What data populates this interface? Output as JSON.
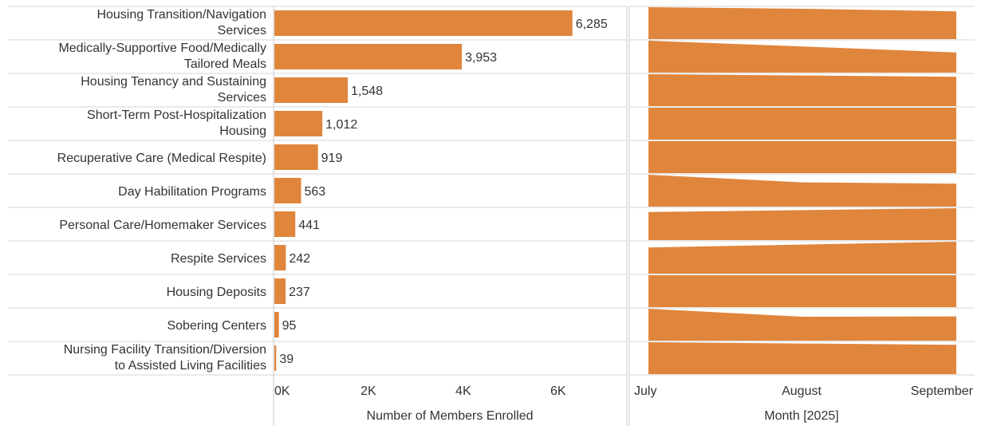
{
  "colors": {
    "bar": "#e0853c",
    "grid": "#d4d4d4",
    "axis": "#c8c8c8",
    "text": "#333333"
  },
  "chart_data": [
    {
      "type": "bar",
      "orientation": "horizontal",
      "categories": [
        [
          "Housing Transition/Navigation",
          "Services"
        ],
        [
          "Medically-Supportive Food/Medically",
          "Tailored Meals"
        ],
        [
          "Housing Tenancy and Sustaining",
          "Services"
        ],
        [
          "Short-Term Post-Hospitalization",
          "Housing"
        ],
        [
          "Recuperative Care (Medical Respite)"
        ],
        [
          "Day Habilitation Programs"
        ],
        [
          "Personal Care/Homemaker Services"
        ],
        [
          "Respite Services"
        ],
        [
          "Housing Deposits"
        ],
        [
          "Sobering Centers"
        ],
        [
          "Nursing Facility Transition/Diversion",
          "to Assisted Living Facilities"
        ]
      ],
      "values": [
        6285,
        3953,
        1548,
        1012,
        919,
        563,
        441,
        242,
        237,
        95,
        39
      ],
      "value_labels": [
        "6,285",
        "3,953",
        "1,548",
        "1,012",
        "919",
        "563",
        "441",
        "242",
        "237",
        "95",
        "39"
      ],
      "xlim": [
        0,
        7400
      ],
      "xticks": [
        0,
        2000,
        4000,
        6000
      ],
      "xtick_labels": [
        "0K",
        "2K",
        "4K",
        "6K"
      ],
      "xlabel": "Number of Members Enrolled",
      "grid": "horizontal row dividers"
    },
    {
      "type": "area",
      "x": [
        "July",
        "August",
        "September"
      ],
      "xlabel": "Month [2025]",
      "relative_height": [
        [
          1.0,
          0.95,
          0.87
        ],
        [
          1.0,
          0.82,
          0.63
        ],
        [
          1.0,
          0.96,
          0.92
        ],
        [
          1.0,
          1.0,
          1.0
        ],
        [
          1.0,
          1.0,
          1.0
        ],
        [
          1.0,
          0.76,
          0.72
        ],
        [
          0.88,
          0.94,
          1.0
        ],
        [
          0.82,
          0.91,
          1.0
        ],
        [
          1.0,
          1.0,
          1.0
        ],
        [
          1.0,
          0.75,
          0.76
        ],
        [
          1.0,
          0.96,
          0.92
        ]
      ]
    }
  ]
}
